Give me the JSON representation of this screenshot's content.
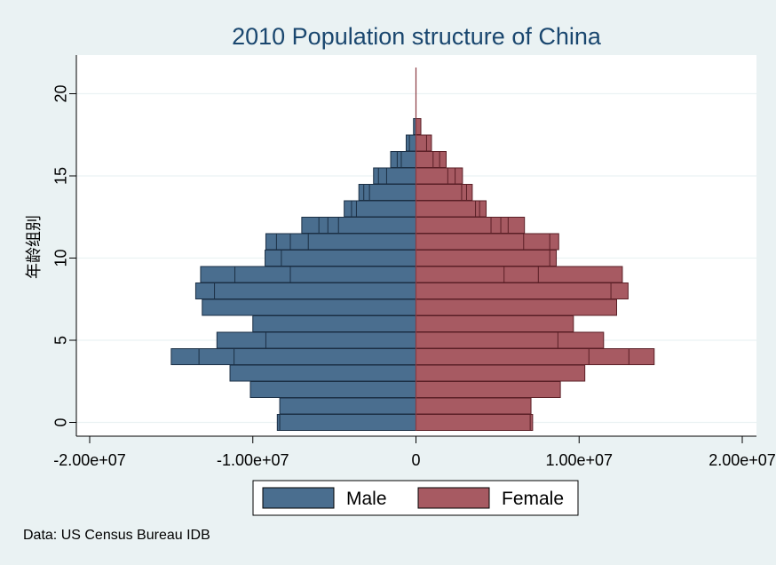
{
  "chart_data": {
    "type": "bar",
    "orientation": "horizontal",
    "title": "2010 Population structure of China",
    "ylabel": "年龄组别",
    "xlabel": "",
    "xlim": [
      -20000000,
      20000000
    ],
    "ylim": [
      -0.7,
      22.2
    ],
    "x_ticks": [
      {
        "value": -20000000,
        "label": "-2.00e+07"
      },
      {
        "value": -10000000,
        "label": "-1.00e+07"
      },
      {
        "value": 0,
        "label": "0"
      },
      {
        "value": 10000000,
        "label": "1.00e+07"
      },
      {
        "value": 20000000,
        "label": "2.00e+07"
      }
    ],
    "y_ticks": [
      {
        "value": 0,
        "label": "0"
      },
      {
        "value": 5,
        "label": "5"
      },
      {
        "value": 10,
        "label": "10"
      },
      {
        "value": 15,
        "label": "15"
      },
      {
        "value": 20,
        "label": "20"
      }
    ],
    "grid": true,
    "legend_position": "bottom",
    "note": "Data: US Census Bureau IDB",
    "series": [
      {
        "name": "Male",
        "color": "#4a6e8f",
        "bars": [
          {
            "age": 0,
            "value": -8500000,
            "inner": -8350000
          },
          {
            "age": 1,
            "value": -8350000
          },
          {
            "age": 2,
            "value": -10150000
          },
          {
            "age": 3,
            "value": -11400000
          },
          {
            "age": 4,
            "value": -15000000,
            "inner": -13300000,
            "inner2": -11150000
          },
          {
            "age": 5,
            "value": -12200000,
            "inner": -9200000
          },
          {
            "age": 6,
            "value": -10000000
          },
          {
            "age": 7,
            "value": -13100000
          },
          {
            "age": 8,
            "value": -13500000,
            "inner": -12350000
          },
          {
            "age": 9,
            "value": -13200000,
            "inner": -11100000,
            "inner2": -7700000
          },
          {
            "age": 10,
            "value": -9250000,
            "inner": -8250000
          },
          {
            "age": 11,
            "value": -9200000,
            "inner": -8550000,
            "inner2": -7700000,
            "inner3": -6600000
          },
          {
            "age": 12,
            "value": -7000000,
            "inner": -5950000,
            "inner2": -5400000,
            "inner3": -4750000
          },
          {
            "age": 13,
            "value": -4400000,
            "inner": -3950000,
            "inner2": -3650000
          },
          {
            "age": 14,
            "value": -3500000,
            "inner": -3200000,
            "inner2": -2850000
          },
          {
            "age": 15,
            "value": -2600000,
            "inner": -2300000,
            "inner2": -1800000
          },
          {
            "age": 16,
            "value": -1550000,
            "inner": -1150000,
            "inner2": -900000
          },
          {
            "age": 17,
            "value": -600000,
            "inner": -400000
          },
          {
            "age": 18,
            "value": -150000
          },
          {
            "age": 19,
            "value": 0
          }
        ]
      },
      {
        "name": "Female",
        "color": "#a75a62",
        "bars": [
          {
            "age": 0,
            "value": 7150000,
            "inner": 7000000
          },
          {
            "age": 1,
            "value": 7050000
          },
          {
            "age": 2,
            "value": 8850000
          },
          {
            "age": 3,
            "value": 10350000
          },
          {
            "age": 4,
            "value": 14600000,
            "inner": 13050000,
            "inner2": 10600000
          },
          {
            "age": 5,
            "value": 11500000,
            "inner": 8700000
          },
          {
            "age": 6,
            "value": 9650000
          },
          {
            "age": 7,
            "value": 12300000
          },
          {
            "age": 8,
            "value": 13000000,
            "inner": 11950000
          },
          {
            "age": 9,
            "value": 12650000,
            "inner": 7500000,
            "inner2": 5400000
          },
          {
            "age": 10,
            "value": 8600000,
            "inner": 8200000
          },
          {
            "age": 11,
            "value": 8750000,
            "inner": 8200000,
            "inner2": 6600000
          },
          {
            "age": 12,
            "value": 6650000,
            "inner": 5650000,
            "inner2": 5200000,
            "inner3": 4600000
          },
          {
            "age": 13,
            "value": 4300000,
            "inner": 3900000,
            "inner2": 3650000
          },
          {
            "age": 14,
            "value": 3450000,
            "inner": 3100000,
            "inner2": 2800000
          },
          {
            "age": 15,
            "value": 2850000,
            "inner": 2400000,
            "inner2": 1950000
          },
          {
            "age": 16,
            "value": 1850000,
            "inner": 1450000,
            "inner2": 1050000
          },
          {
            "age": 17,
            "value": 950000,
            "inner": 650000
          },
          {
            "age": 18,
            "value": 300000
          },
          {
            "age": 19,
            "value": 0
          }
        ]
      }
    ]
  },
  "colors": {
    "background": "#eaf2f3",
    "plot_background": "#ffffff",
    "grid": "#eaf2f3",
    "title": "#1a476f",
    "stroke_male": "#1b2f44",
    "stroke_female": "#5a1f26",
    "center_line": "#8a3b42"
  }
}
